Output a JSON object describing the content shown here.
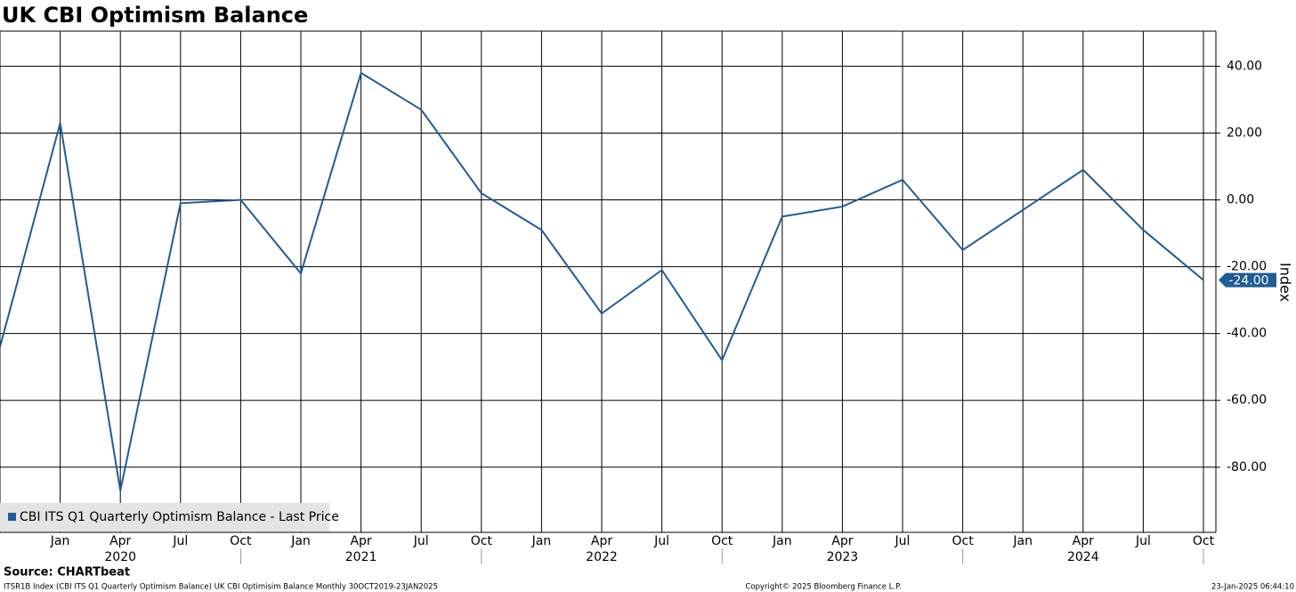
{
  "chart_data": {
    "type": "line",
    "title": "UK CBI Optimism Balance",
    "categories": [
      null,
      "Jan",
      "Apr",
      "Jul",
      "Oct",
      "Jan",
      "Apr",
      "Jul",
      "Oct",
      "Jan",
      "Apr",
      "Jul",
      "Oct",
      "Jan",
      "Apr",
      "Jul",
      "Oct",
      "Jan",
      "Apr",
      "Jul",
      "Oct"
    ],
    "years": [
      "2020",
      "2021",
      "2022",
      "2023",
      "2024"
    ],
    "series": [
      {
        "name": "CBI ITS Q1 Quarterly Optimism Balance - Last Price",
        "color": "#1f5c99",
        "values": [
          -44,
          23,
          -87,
          -1,
          0,
          -22,
          38,
          27,
          2,
          -9,
          -34,
          -21,
          -48,
          -5,
          -2,
          6,
          -15,
          -3,
          9,
          -9,
          -24
        ]
      }
    ],
    "last_price": {
      "value": -24,
      "label": "-24.00"
    },
    "y_label": "Index",
    "ylim": [
      -99.5,
      50.5
    ],
    "yticks": [
      {
        "value": 40,
        "label": "40.00"
      },
      {
        "value": 20,
        "label": "20.00"
      },
      {
        "value": 0,
        "label": "0.00"
      },
      {
        "value": -20,
        "label": "-20.00"
      },
      {
        "value": -40,
        "label": "-40.00"
      },
      {
        "value": -60,
        "label": "-60.00"
      },
      {
        "value": -80,
        "label": "-80.00"
      }
    ],
    "grid": true,
    "source": "Source: CHARTbeat",
    "footer_left": "ITSR1B Index (CBI ITS Q1 Quarterly Optimism Balance) UK CBI Optimisim Balance  Monthly 30OCT2019-23JAN2025",
    "footer_center": "Copyright© 2025 Bloomberg Finance L.P.",
    "footer_right": "23-Jan-2025 06:44:10"
  }
}
